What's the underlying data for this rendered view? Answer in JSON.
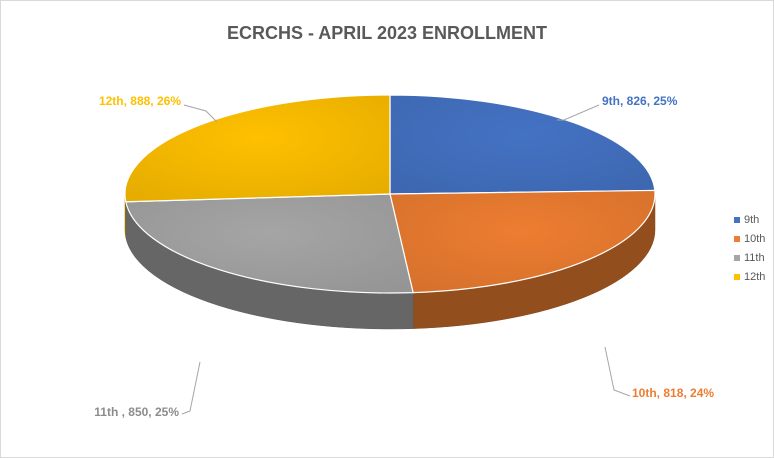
{
  "chart_data": {
    "type": "pie",
    "title": "ECRCHS - APRIL 2023 ENROLLMENT",
    "categories": [
      "9th",
      "10th",
      "11th",
      "12th"
    ],
    "values": [
      826,
      818,
      850,
      888
    ],
    "percent_labels": [
      "25%",
      "24%",
      "25%",
      "26%"
    ],
    "data_labels": [
      "9th, 826, 25%",
      "10th, 818, 24%",
      "11th , 850, 25%",
      "12th, 888, 26%"
    ],
    "colors": [
      "#4472C4",
      "#ED7D31",
      "#A5A5A5",
      "#FFC000"
    ],
    "legend": {
      "position": "right",
      "entries": [
        "9th",
        "10th",
        "11th",
        "12th"
      ]
    },
    "style": "3d"
  }
}
